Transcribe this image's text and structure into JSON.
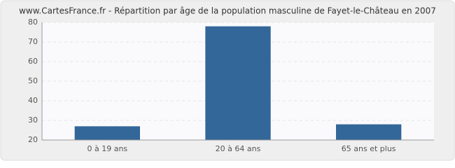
{
  "chart_data": {
    "type": "bar",
    "title": "www.CartesFrance.fr - Répartition par âge de la population masculine de Fayet-le-Château en 2007",
    "categories": [
      "0 à 19 ans",
      "20 à 64 ans",
      "65 ans et plus"
    ],
    "values": [
      27,
      78,
      28
    ],
    "color": "#336699",
    "ylim": [
      20,
      80
    ],
    "yticks": [
      20,
      30,
      40,
      50,
      60,
      70,
      80
    ],
    "grid": true
  }
}
